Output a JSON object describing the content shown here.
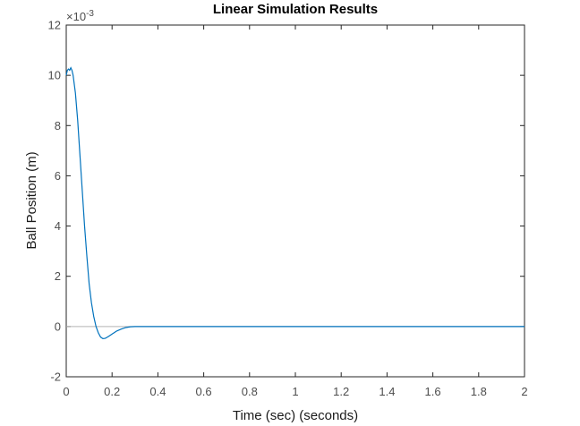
{
  "chart_data": {
    "type": "line",
    "title": "Linear Simulation Results",
    "xlabel": "Time (sec) (seconds)",
    "ylabel": "Ball Position (m)",
    "y_exponent_label": "×10",
    "y_exponent_power": "-3",
    "xlim": [
      0,
      2
    ],
    "ylim": [
      -2,
      12
    ],
    "x_ticks": [
      "0",
      "0.2",
      "0.4",
      "0.6",
      "0.8",
      "1",
      "1.2",
      "1.4",
      "1.6",
      "1.8",
      "2"
    ],
    "y_ticks": [
      "-2",
      "0",
      "2",
      "4",
      "6",
      "8",
      "10",
      "12"
    ],
    "x_tick_values": [
      0,
      0.2,
      0.4,
      0.6,
      0.8,
      1,
      1.2,
      1.4,
      1.6,
      1.8,
      2
    ],
    "y_tick_values": [
      -2,
      0,
      2,
      4,
      6,
      8,
      10,
      12
    ],
    "grid": false,
    "baseline": 0,
    "series": [
      {
        "x": [
          0,
          0.005,
          0.01,
          0.015,
          0.02,
          0.025,
          0.03,
          0.04,
          0.05,
          0.06,
          0.07,
          0.08,
          0.09,
          0.1,
          0.11,
          0.12,
          0.13,
          0.14,
          0.15,
          0.16,
          0.17,
          0.18,
          0.19,
          0.2,
          0.22,
          0.24,
          0.26,
          0.28,
          0.3,
          0.32,
          0.35,
          0.4,
          0.5,
          0.75,
          1.0,
          1.25,
          1.5,
          1.75,
          2.0
        ],
        "y": [
          10.0,
          10.2,
          10.25,
          10.2,
          10.3,
          10.2,
          10.0,
          9.3,
          8.2,
          6.8,
          5.4,
          4.0,
          2.8,
          1.7,
          0.95,
          0.4,
          0.0,
          -0.25,
          -0.42,
          -0.48,
          -0.47,
          -0.42,
          -0.36,
          -0.3,
          -0.18,
          -0.1,
          -0.04,
          -0.01,
          0.0,
          0.0,
          0.0,
          0.0,
          0.0,
          0.0,
          0.0,
          0.0,
          0.0,
          0.0,
          0.0
        ]
      }
    ],
    "colors": {
      "line": "#0072bd",
      "baseline": "#b3b3b3",
      "axes": "#262626"
    }
  }
}
